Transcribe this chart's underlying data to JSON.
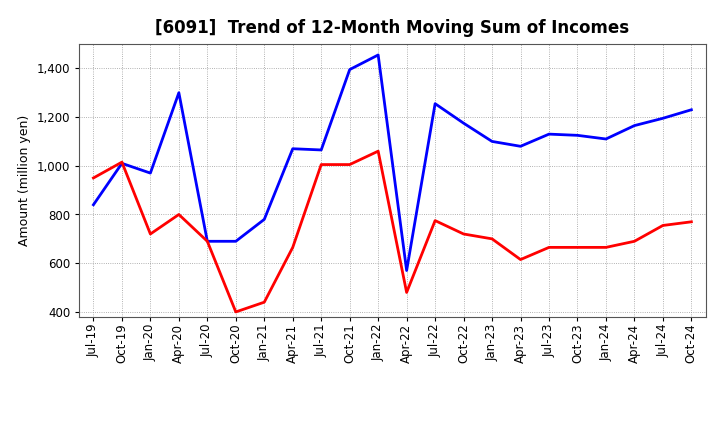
{
  "title": "[6091]  Trend of 12-Month Moving Sum of Incomes",
  "ylabel": "Amount (million yen)",
  "x_labels": [
    "Jul-19",
    "Oct-19",
    "Jan-20",
    "Apr-20",
    "Jul-20",
    "Oct-20",
    "Jan-21",
    "Apr-21",
    "Jul-21",
    "Oct-21",
    "Jan-22",
    "Apr-22",
    "Jul-22",
    "Oct-22",
    "Jan-23",
    "Apr-23",
    "Jul-23",
    "Oct-23",
    "Jan-24",
    "Apr-24",
    "Jul-24",
    "Oct-24"
  ],
  "ordinary_income": [
    840,
    1010,
    970,
    1300,
    690,
    690,
    780,
    1070,
    1065,
    1395,
    1455,
    570,
    1255,
    1175,
    1100,
    1080,
    1130,
    1125,
    1110,
    1165,
    1195,
    1230
  ],
  "net_income": [
    950,
    1015,
    720,
    800,
    690,
    400,
    440,
    665,
    1005,
    1005,
    1060,
    480,
    775,
    720,
    700,
    615,
    665,
    665,
    665,
    690,
    755,
    770
  ],
  "ordinary_color": "#0000FF",
  "net_color": "#FF0000",
  "ylim_min": 380,
  "ylim_max": 1500,
  "yticks": [
    400,
    600,
    800,
    1000,
    1200,
    1400
  ],
  "background_color": "#FFFFFF",
  "plot_bg_color": "#FFFFFF",
  "grid_color": "#999999",
  "title_fontsize": 12,
  "axis_fontsize": 8.5,
  "ylabel_fontsize": 9,
  "line_width": 2.0
}
